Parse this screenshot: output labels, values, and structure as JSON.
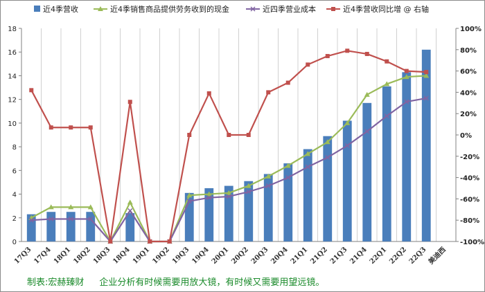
{
  "chart_data": {
    "type": "bar",
    "categories": [
      "17Q3",
      "17Q4",
      "18Q1",
      "18Q2",
      "18Q3",
      "18Q4",
      "19Q1",
      "19Q2",
      "19Q3",
      "19Q4",
      "20Q1",
      "20Q2",
      "20Q3",
      "20Q4",
      "21Q1",
      "21Q2",
      "21Q3",
      "21Q4",
      "22Q1",
      "22Q2",
      "22Q3",
      "美迪西"
    ],
    "ylim": [
      0,
      18
    ],
    "y_ticks": [
      0,
      2,
      4,
      6,
      8,
      10,
      12,
      14,
      16,
      18
    ],
    "y2lim": [
      -100,
      100
    ],
    "y2_ticks": [
      "-100%",
      "-80%",
      "-60%",
      "-40%",
      "-20%",
      "0%",
      "20%",
      "40%",
      "60%",
      "80%",
      "100%"
    ],
    "grid": "vertical",
    "legend_position": "top",
    "series": [
      {
        "name": "近4季营收",
        "type": "bar",
        "axis": "left",
        "color": "#4a7ebb",
        "values": [
          2.3,
          2.5,
          2.5,
          2.5,
          0,
          2.4,
          0,
          0,
          4.1,
          4.5,
          4.7,
          5.1,
          5.7,
          6.6,
          7.8,
          8.9,
          10.2,
          11.7,
          13.1,
          14.3,
          16.2,
          null
        ]
      },
      {
        "name": "近4季销售商品提供劳务收到的现金",
        "type": "line",
        "axis": "left",
        "color": "#9bbb59",
        "marker": "triangle",
        "values": [
          2.0,
          2.9,
          2.9,
          2.9,
          0,
          3.3,
          0,
          0,
          3.9,
          4.0,
          4.1,
          4.7,
          5.5,
          6.4,
          7.4,
          8.4,
          10.0,
          12.4,
          13.3,
          13.9,
          14.0,
          null
        ]
      },
      {
        "name": "近四季营业成本",
        "type": "line",
        "axis": "left",
        "color": "#8064a2",
        "marker": "x",
        "values": [
          1.8,
          1.9,
          1.9,
          1.9,
          0,
          2.6,
          0,
          0,
          3.4,
          3.7,
          3.8,
          4.2,
          4.7,
          5.4,
          6.3,
          7.1,
          8.1,
          9.3,
          10.6,
          11.8,
          12.1,
          null
        ]
      },
      {
        "name": "近4季营收同比增 @ 右轴",
        "type": "line",
        "axis": "right",
        "color": "#c0504d",
        "marker": "square",
        "values": [
          42,
          7,
          7,
          7,
          -100,
          31,
          -100,
          -100,
          0,
          39,
          0,
          0,
          40,
          49,
          66,
          74,
          79,
          76,
          69,
          60,
          59,
          null
        ]
      }
    ]
  },
  "footer": {
    "source": "制表:宏赫臻财",
    "slogan": "企业分析有时候需要用放大镜，有时候又需要用望远镜。"
  }
}
